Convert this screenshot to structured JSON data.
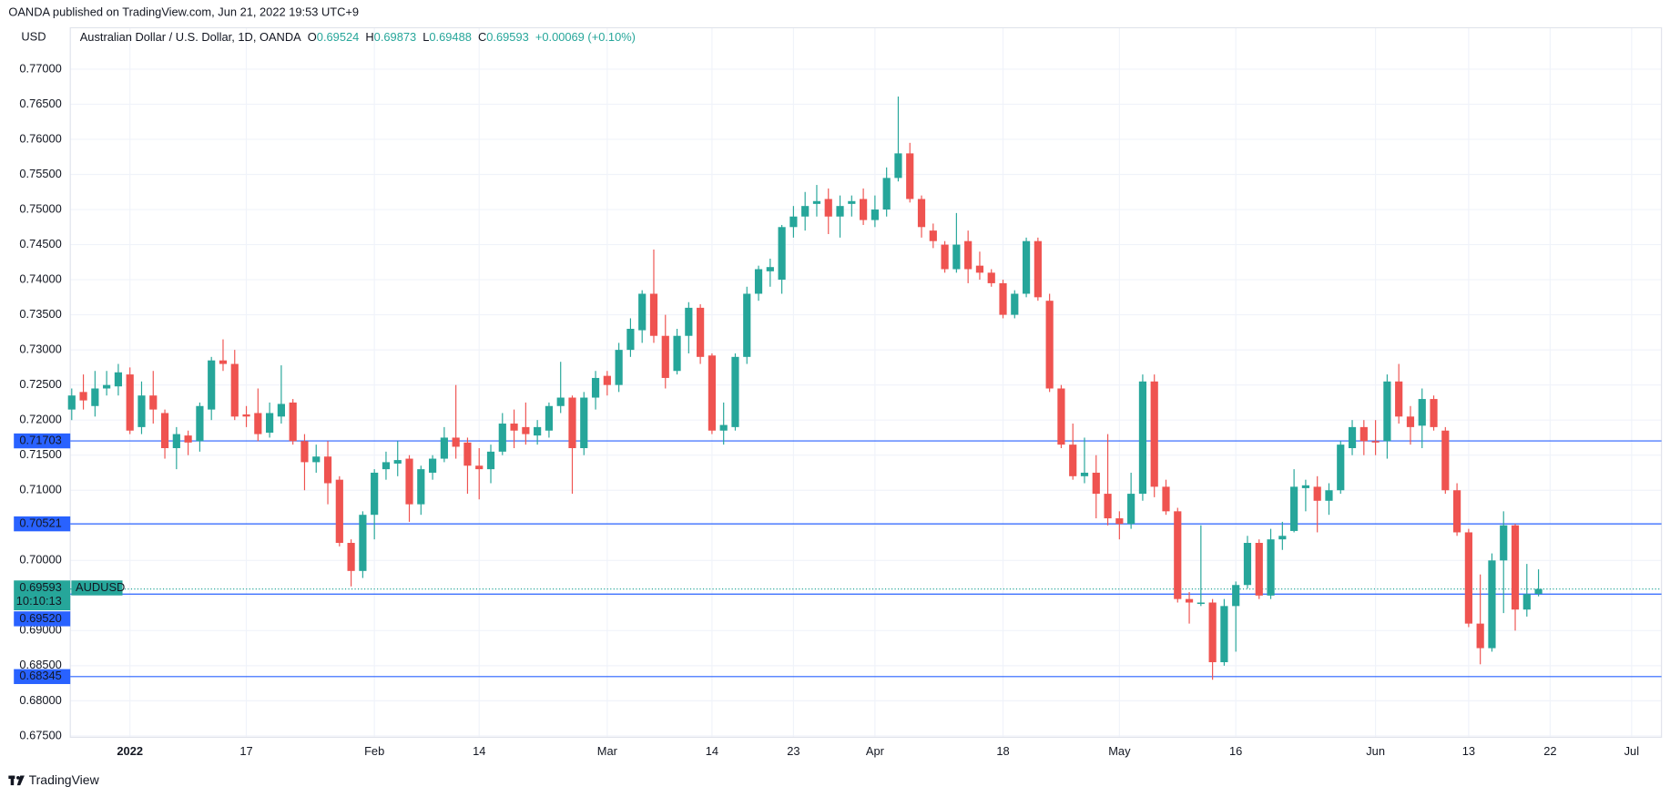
{
  "page_header": "OANDA published on TradingView.com, Jun 21, 2022 19:53 UTC+9",
  "footer_brand": "TradingView",
  "chart_data": {
    "type": "candlestick",
    "currency": "USD",
    "symbol_title": "Australian Dollar / U.S. Dollar, 1D, OANDA",
    "ohlc_labels": [
      "O",
      "H",
      "L",
      "C"
    ],
    "change": "+0.00069 (+0.10%)",
    "symbol": "AUDUSD",
    "countdown": "10:10:13",
    "up_color": "#26a69a",
    "down_color": "#ef5350",
    "level_color": "#2962ff",
    "levels": [
      0.71703,
      0.70521,
      {
        "value": 0.6952,
        "label": "0.69520"
      },
      0.68345
    ],
    "grid": true,
    "ylim": [
      0.6748,
      0.7759
    ],
    "yticks": [
      {
        "value": 0.675,
        "label": "0.67500"
      },
      {
        "value": 0.68,
        "label": "0.68000"
      },
      {
        "value": 0.685,
        "label": "0.68500"
      },
      {
        "value": 0.69,
        "label": "0.69000"
      },
      {
        "value": 0.695,
        "label": "0.69500"
      },
      {
        "value": 0.7,
        "label": "0.70000"
      },
      {
        "value": 0.705,
        "label": "0.70500"
      },
      {
        "value": 0.71,
        "label": "0.71000"
      },
      {
        "value": 0.715,
        "label": "0.71500"
      },
      {
        "value": 0.72,
        "label": "0.72000"
      },
      {
        "value": 0.725,
        "label": "0.72500"
      },
      {
        "value": 0.73,
        "label": "0.73000"
      },
      {
        "value": 0.735,
        "label": "0.73500"
      },
      {
        "value": 0.74,
        "label": "0.74000"
      },
      {
        "value": 0.745,
        "label": "0.74500"
      },
      {
        "value": 0.75,
        "label": "0.75000"
      },
      {
        "value": 0.755,
        "label": "0.75500"
      },
      {
        "value": 0.76,
        "label": "0.76000"
      },
      {
        "value": 0.765,
        "label": "0.76500"
      },
      {
        "value": 0.77,
        "label": "0.77000"
      }
    ],
    "xticks": [
      {
        "value": "2022-01-03",
        "label": "2022"
      },
      {
        "value": "2022-01-17",
        "label": "17"
      },
      {
        "value": "2022-02-01",
        "label": "Feb"
      },
      {
        "value": "2022-02-14",
        "label": "14"
      },
      {
        "value": "2022-03-01",
        "label": "Mar"
      },
      {
        "value": "2022-03-14",
        "label": "14"
      },
      {
        "value": "2022-03-23",
        "label": "23"
      },
      {
        "value": "2022-04-01",
        "label": "Apr"
      },
      {
        "value": "2022-04-18",
        "label": "18"
      },
      {
        "value": "2022-05-02",
        "label": "May"
      },
      {
        "value": "2022-05-16",
        "label": "16"
      },
      {
        "value": "2022-06-01",
        "label": "Jun"
      },
      {
        "value": "2022-06-13",
        "label": "13"
      },
      {
        "value": "2022-06-22",
        "label": "22"
      },
      {
        "value": "2022-07-01",
        "label": "Jul"
      }
    ],
    "x": [
      "2021-12-27",
      "2021-12-28",
      "2021-12-29",
      "2021-12-30",
      "2021-12-31",
      "2022-01-03",
      "2022-01-04",
      "2022-01-05",
      "2022-01-06",
      "2022-01-07",
      "2022-01-10",
      "2022-01-11",
      "2022-01-12",
      "2022-01-13",
      "2022-01-14",
      "2022-01-17",
      "2022-01-18",
      "2022-01-19",
      "2022-01-20",
      "2022-01-21",
      "2022-01-24",
      "2022-01-25",
      "2022-01-26",
      "2022-01-27",
      "2022-01-28",
      "2022-01-31",
      "2022-02-01",
      "2022-02-02",
      "2022-02-03",
      "2022-02-04",
      "2022-02-07",
      "2022-02-08",
      "2022-02-09",
      "2022-02-10",
      "2022-02-11",
      "2022-02-14",
      "2022-02-15",
      "2022-02-16",
      "2022-02-17",
      "2022-02-18",
      "2022-02-21",
      "2022-02-22",
      "2022-02-23",
      "2022-02-24",
      "2022-02-25",
      "2022-02-28",
      "2022-03-01",
      "2022-03-02",
      "2022-03-03",
      "2022-03-04",
      "2022-03-07",
      "2022-03-08",
      "2022-03-09",
      "2022-03-10",
      "2022-03-11",
      "2022-03-14",
      "2022-03-15",
      "2022-03-16",
      "2022-03-17",
      "2022-03-18",
      "2022-03-21",
      "2022-03-22",
      "2022-03-23",
      "2022-03-24",
      "2022-03-25",
      "2022-03-28",
      "2022-03-29",
      "2022-03-30",
      "2022-03-31",
      "2022-04-01",
      "2022-04-04",
      "2022-04-05",
      "2022-04-06",
      "2022-04-07",
      "2022-04-08",
      "2022-04-11",
      "2022-04-12",
      "2022-04-13",
      "2022-04-14",
      "2022-04-15",
      "2022-04-18",
      "2022-04-19",
      "2022-04-20",
      "2022-04-21",
      "2022-04-22",
      "2022-04-25",
      "2022-04-26",
      "2022-04-27",
      "2022-04-28",
      "2022-04-29",
      "2022-05-02",
      "2022-05-03",
      "2022-05-04",
      "2022-05-05",
      "2022-05-06",
      "2022-05-09",
      "2022-05-10",
      "2022-05-11",
      "2022-05-12",
      "2022-05-13",
      "2022-05-16",
      "2022-05-17",
      "2022-05-18",
      "2022-05-19",
      "2022-05-20",
      "2022-05-23",
      "2022-05-24",
      "2022-05-25",
      "2022-05-26",
      "2022-05-27",
      "2022-05-30",
      "2022-05-31",
      "2022-06-01",
      "2022-06-02",
      "2022-06-03",
      "2022-06-06",
      "2022-06-07",
      "2022-06-08",
      "2022-06-09",
      "2022-06-10",
      "2022-06-13",
      "2022-06-14",
      "2022-06-15",
      "2022-06-16",
      "2022-06-17",
      "2022-06-20",
      "2022-06-21"
    ],
    "open": [
      0.7215,
      0.724,
      0.722,
      0.7245,
      0.7248,
      0.7265,
      0.719,
      0.7235,
      0.721,
      0.716,
      0.7178,
      0.717,
      0.7215,
      0.7285,
      0.728,
      0.7208,
      0.721,
      0.7182,
      0.7205,
      0.7225,
      0.717,
      0.714,
      0.7148,
      0.7115,
      0.7025,
      0.6985,
      0.7065,
      0.713,
      0.7138,
      0.7145,
      0.708,
      0.7125,
      0.7145,
      0.7175,
      0.7168,
      0.7135,
      0.713,
      0.7155,
      0.7195,
      0.719,
      0.7178,
      0.7185,
      0.722,
      0.7232,
      0.716,
      0.7232,
      0.7263,
      0.725,
      0.73,
      0.7328,
      0.738,
      0.732,
      0.727,
      0.732,
      0.736,
      0.7292,
      0.7185,
      0.719,
      0.729,
      0.738,
      0.7412,
      0.74,
      0.7475,
      0.749,
      0.7508,
      0.7515,
      0.749,
      0.7508,
      0.7515,
      0.7485,
      0.75,
      0.7545,
      0.758,
      0.7515,
      0.747,
      0.745,
      0.7415,
      0.7455,
      0.742,
      0.741,
      0.7395,
      0.735,
      0.738,
      0.7455,
      0.737,
      0.7245,
      0.7165,
      0.712,
      0.7125,
      0.7095,
      0.706,
      0.7052,
      0.7095,
      0.7255,
      0.7105,
      0.707,
      0.6945,
      0.6938,
      0.694,
      0.6855,
      0.6935,
      0.6965,
      0.7025,
      0.695,
      0.703,
      0.7042,
      0.7103,
      0.7105,
      0.7085,
      0.71,
      0.716,
      0.719,
      0.717,
      0.717,
      0.7255,
      0.7205,
      0.7192,
      0.723,
      0.7185,
      0.71,
      0.704,
      0.691,
      0.6875,
      0.7,
      0.705,
      0.693,
      0.69524
    ],
    "high": [
      0.7245,
      0.7265,
      0.727,
      0.727,
      0.728,
      0.7275,
      0.7255,
      0.727,
      0.7215,
      0.719,
      0.7185,
      0.7225,
      0.729,
      0.7315,
      0.73,
      0.722,
      0.7245,
      0.7225,
      0.7278,
      0.723,
      0.718,
      0.7165,
      0.717,
      0.712,
      0.703,
      0.707,
      0.713,
      0.7155,
      0.717,
      0.715,
      0.7135,
      0.715,
      0.719,
      0.725,
      0.7175,
      0.716,
      0.7165,
      0.721,
      0.7215,
      0.7225,
      0.72,
      0.7225,
      0.7283,
      0.7235,
      0.724,
      0.727,
      0.727,
      0.731,
      0.7345,
      0.7385,
      0.7443,
      0.735,
      0.733,
      0.7368,
      0.7365,
      0.7295,
      0.7225,
      0.7295,
      0.739,
      0.742,
      0.743,
      0.7478,
      0.7505,
      0.7525,
      0.7535,
      0.753,
      0.752,
      0.752,
      0.753,
      0.752,
      0.756,
      0.7661,
      0.7595,
      0.752,
      0.748,
      0.7455,
      0.7495,
      0.747,
      0.744,
      0.7415,
      0.74,
      0.7385,
      0.746,
      0.746,
      0.738,
      0.725,
      0.7195,
      0.7175,
      0.715,
      0.718,
      0.707,
      0.7125,
      0.7265,
      0.7265,
      0.7115,
      0.7075,
      0.6955,
      0.705,
      0.6945,
      0.6945,
      0.697,
      0.7035,
      0.703,
      0.7045,
      0.7055,
      0.713,
      0.7115,
      0.712,
      0.711,
      0.717,
      0.72,
      0.72,
      0.72,
      0.7265,
      0.728,
      0.722,
      0.7245,
      0.7235,
      0.719,
      0.711,
      0.7045,
      0.698,
      0.701,
      0.707,
      0.7052,
      0.6995,
      0.69873
    ],
    "low": [
      0.72,
      0.7215,
      0.7205,
      0.7235,
      0.7235,
      0.718,
      0.718,
      0.7195,
      0.7145,
      0.713,
      0.715,
      0.7155,
      0.72,
      0.727,
      0.72,
      0.719,
      0.717,
      0.7175,
      0.7195,
      0.7165,
      0.71,
      0.7125,
      0.708,
      0.702,
      0.6963,
      0.6975,
      0.703,
      0.7115,
      0.712,
      0.7055,
      0.7065,
      0.7115,
      0.714,
      0.7145,
      0.7095,
      0.7087,
      0.711,
      0.715,
      0.716,
      0.7165,
      0.7165,
      0.7175,
      0.721,
      0.7095,
      0.715,
      0.7215,
      0.7235,
      0.724,
      0.729,
      0.731,
      0.731,
      0.7245,
      0.7265,
      0.7295,
      0.728,
      0.718,
      0.7165,
      0.7185,
      0.728,
      0.737,
      0.739,
      0.738,
      0.746,
      0.747,
      0.749,
      0.7465,
      0.746,
      0.749,
      0.7478,
      0.7475,
      0.749,
      0.754,
      0.751,
      0.746,
      0.7445,
      0.741,
      0.741,
      0.7395,
      0.74,
      0.739,
      0.7345,
      0.7345,
      0.7375,
      0.737,
      0.724,
      0.716,
      0.7115,
      0.711,
      0.706,
      0.705,
      0.703,
      0.7045,
      0.7085,
      0.709,
      0.7065,
      0.694,
      0.691,
      0.6935,
      0.683,
      0.685,
      0.687,
      0.696,
      0.6945,
      0.6945,
      0.7015,
      0.704,
      0.707,
      0.704,
      0.7065,
      0.7095,
      0.715,
      0.715,
      0.715,
      0.7145,
      0.7195,
      0.7165,
      0.716,
      0.7185,
      0.7095,
      0.7035,
      0.6905,
      0.6852,
      0.687,
      0.6925,
      0.69,
      0.692,
      0.69488
    ],
    "close": [
      0.7235,
      0.7228,
      0.7245,
      0.725,
      0.7268,
      0.7185,
      0.7235,
      0.7215,
      0.716,
      0.718,
      0.7168,
      0.722,
      0.7285,
      0.728,
      0.7205,
      0.7205,
      0.718,
      0.721,
      0.7223,
      0.717,
      0.714,
      0.7148,
      0.711,
      0.7025,
      0.6985,
      0.7065,
      0.7125,
      0.714,
      0.7143,
      0.708,
      0.713,
      0.7145,
      0.7175,
      0.7162,
      0.7135,
      0.713,
      0.7155,
      0.7195,
      0.7185,
      0.718,
      0.719,
      0.722,
      0.7232,
      0.716,
      0.7232,
      0.726,
      0.725,
      0.73,
      0.733,
      0.738,
      0.732,
      0.726,
      0.732,
      0.736,
      0.729,
      0.7185,
      0.7193,
      0.729,
      0.738,
      0.7415,
      0.7418,
      0.7475,
      0.749,
      0.7505,
      0.7512,
      0.749,
      0.7505,
      0.7512,
      0.7485,
      0.75,
      0.7545,
      0.758,
      0.7515,
      0.7475,
      0.7455,
      0.7415,
      0.745,
      0.7415,
      0.741,
      0.7395,
      0.735,
      0.738,
      0.7455,
      0.7375,
      0.7245,
      0.7165,
      0.712,
      0.7125,
      0.7095,
      0.706,
      0.7052,
      0.7095,
      0.7255,
      0.7105,
      0.707,
      0.6945,
      0.694,
      0.694,
      0.6855,
      0.6935,
      0.6965,
      0.7025,
      0.695,
      0.703,
      0.7035,
      0.7105,
      0.7107,
      0.7085,
      0.71,
      0.7165,
      0.719,
      0.717,
      0.7168,
      0.7255,
      0.7205,
      0.719,
      0.723,
      0.719,
      0.71,
      0.704,
      0.691,
      0.6875,
      0.7,
      0.705,
      0.693,
      0.6952,
      0.69593
    ]
  }
}
